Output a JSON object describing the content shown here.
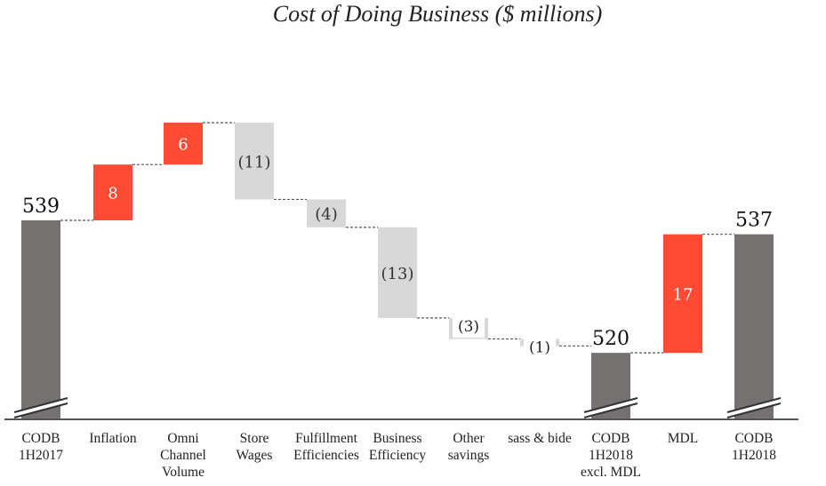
{
  "chart_data": {
    "type": "bar",
    "subtype": "waterfall",
    "title": "Cost of Doing Business ($ millions)",
    "xlabel": "",
    "ylabel": "",
    "categories": [
      [
        "CODB",
        "1H2017"
      ],
      [
        "Inflation"
      ],
      [
        "Omni",
        "Channel",
        "Volume"
      ],
      [
        "Store",
        "Wages"
      ],
      [
        "Fulfillment",
        "Efficiencies"
      ],
      [
        "Business",
        "Efficiency"
      ],
      [
        "Other",
        "savings"
      ],
      [
        "sass & bide"
      ],
      [
        "CODB",
        "1H2018",
        "excl. MDL"
      ],
      [
        "MDL"
      ],
      [
        "CODB",
        "1H2018"
      ]
    ],
    "steps": [
      {
        "kind": "total",
        "value": 539,
        "label": "539"
      },
      {
        "kind": "increase",
        "value": 8,
        "label": "8"
      },
      {
        "kind": "increase",
        "value": 6,
        "label": "6"
      },
      {
        "kind": "decrease",
        "value": -11,
        "label": "(11)"
      },
      {
        "kind": "decrease",
        "value": -4,
        "label": "(4)"
      },
      {
        "kind": "decrease",
        "value": -13,
        "label": "(13)"
      },
      {
        "kind": "decrease",
        "value": -3,
        "label": "(3)"
      },
      {
        "kind": "decrease",
        "value": -1,
        "label": "(1)"
      },
      {
        "kind": "total",
        "value": 520,
        "label": "520"
      },
      {
        "kind": "increase",
        "value": 17,
        "label": "17"
      },
      {
        "kind": "total",
        "value": 537,
        "label": "537"
      }
    ],
    "axis_break": true,
    "grid": false,
    "colors": {
      "total": "#767171",
      "increase": "#ff4b33",
      "decrease": "#d8d8d8",
      "connector": "#555555",
      "baseline": "#555555"
    }
  }
}
